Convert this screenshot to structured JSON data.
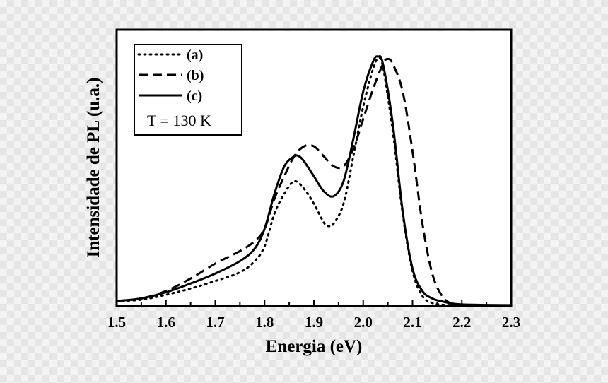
{
  "chart_data": {
    "type": "line",
    "title": "",
    "xlabel": "Energia (eV)",
    "ylabel": "Intensidade de PL (u.a.)",
    "xlim": [
      1.5,
      2.3
    ],
    "ylim": [
      0,
      1.0
    ],
    "xticks": [
      "1.5",
      "1.6",
      "1.7",
      "1.8",
      "1.9",
      "2.0",
      "2.1",
      "2.2",
      "2.3"
    ],
    "yticks_labeled": false,
    "grid": false,
    "legend": {
      "placement": "top-left",
      "annotation": "T = 130 K"
    },
    "series": [
      {
        "name": "(a)",
        "style": "dotted",
        "x": [
          1.5,
          1.55,
          1.6,
          1.65,
          1.7,
          1.75,
          1.78,
          1.8,
          1.82,
          1.84,
          1.86,
          1.88,
          1.9,
          1.92,
          1.93,
          1.94,
          1.96,
          1.98,
          2.0,
          2.02,
          2.03,
          2.04,
          2.06,
          2.08,
          2.1,
          2.12,
          2.14,
          2.16,
          2.18,
          2.2,
          2.25,
          2.3
        ],
        "y": [
          0.02,
          0.025,
          0.045,
          0.07,
          0.1,
          0.135,
          0.18,
          0.24,
          0.37,
          0.45,
          0.5,
          0.47,
          0.41,
          0.335,
          0.32,
          0.33,
          0.41,
          0.6,
          0.8,
          0.95,
          0.99,
          0.96,
          0.7,
          0.37,
          0.14,
          0.04,
          0.012,
          0.005,
          0.003,
          0.002,
          0.002,
          0.002
        ]
      },
      {
        "name": "(b)",
        "style": "dashed",
        "x": [
          1.5,
          1.55,
          1.6,
          1.65,
          1.7,
          1.75,
          1.78,
          1.8,
          1.82,
          1.84,
          1.86,
          1.88,
          1.9,
          1.92,
          1.94,
          1.96,
          1.98,
          2.0,
          2.02,
          2.04,
          2.05,
          2.06,
          2.08,
          2.1,
          2.12,
          2.14,
          2.16,
          2.18,
          2.2,
          2.25,
          2.3
        ],
        "y": [
          0.02,
          0.03,
          0.06,
          0.11,
          0.17,
          0.22,
          0.26,
          0.31,
          0.43,
          0.52,
          0.6,
          0.64,
          0.64,
          0.6,
          0.56,
          0.56,
          0.63,
          0.75,
          0.87,
          0.97,
          0.99,
          0.97,
          0.86,
          0.62,
          0.33,
          0.13,
          0.04,
          0.008,
          0.003,
          0.002,
          0.002
        ]
      },
      {
        "name": "(c)",
        "style": "solid",
        "x": [
          1.5,
          1.55,
          1.6,
          1.65,
          1.7,
          1.75,
          1.78,
          1.8,
          1.82,
          1.84,
          1.86,
          1.87,
          1.88,
          1.9,
          1.92,
          1.94,
          1.96,
          1.98,
          2.0,
          2.02,
          2.03,
          2.04,
          2.06,
          2.08,
          2.1,
          2.12,
          2.14,
          2.16,
          2.18,
          2.2,
          2.25,
          2.3
        ],
        "y": [
          0.02,
          0.03,
          0.055,
          0.09,
          0.13,
          0.18,
          0.23,
          0.31,
          0.45,
          0.56,
          0.6,
          0.6,
          0.58,
          0.52,
          0.46,
          0.44,
          0.5,
          0.67,
          0.86,
          0.98,
          1.0,
          0.97,
          0.73,
          0.38,
          0.15,
          0.06,
          0.03,
          0.018,
          0.01,
          0.006,
          0.004,
          0.003
        ]
      }
    ]
  }
}
